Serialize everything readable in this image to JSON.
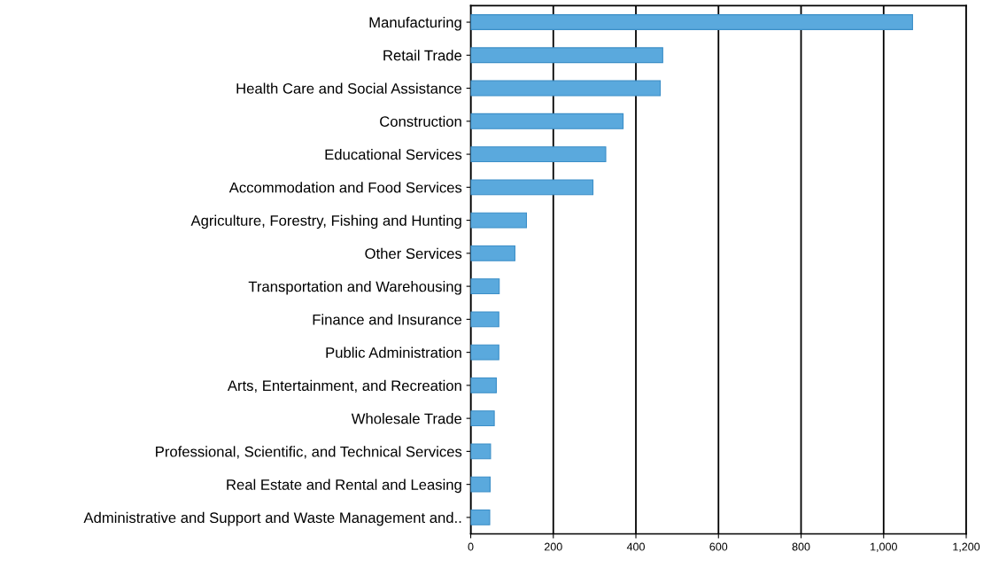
{
  "chart_data": {
    "type": "bar",
    "orientation": "horizontal",
    "categories": [
      "Manufacturing",
      "Retail Trade",
      "Health Care and Social Assistance",
      "Construction",
      "Educational Services",
      "Accommodation and Food Services",
      "Agriculture, Forestry, Fishing and Hunting",
      "Other Services",
      "Transportation and Warehousing",
      "Finance and Insurance",
      "Public Administration",
      "Arts, Entertainment, and Recreation",
      "Wholesale Trade",
      "Professional, Scientific, and Technical Services",
      "Real Estate and Rental and Leasing",
      "Administrative and Support and Waste Management and.."
    ],
    "values": [
      1070,
      465,
      459,
      369,
      327,
      296,
      135,
      107,
      69,
      68,
      68,
      62,
      57,
      48,
      47,
      46
    ],
    "color": "#5aa9dd",
    "xlim": [
      0,
      1200
    ],
    "xticks": [
      0,
      200,
      400,
      600,
      800,
      {
        "value": 1000,
        "label": "1,000"
      },
      {
        "value": 1200,
        "label": "1,200"
      }
    ],
    "grid": "x"
  }
}
